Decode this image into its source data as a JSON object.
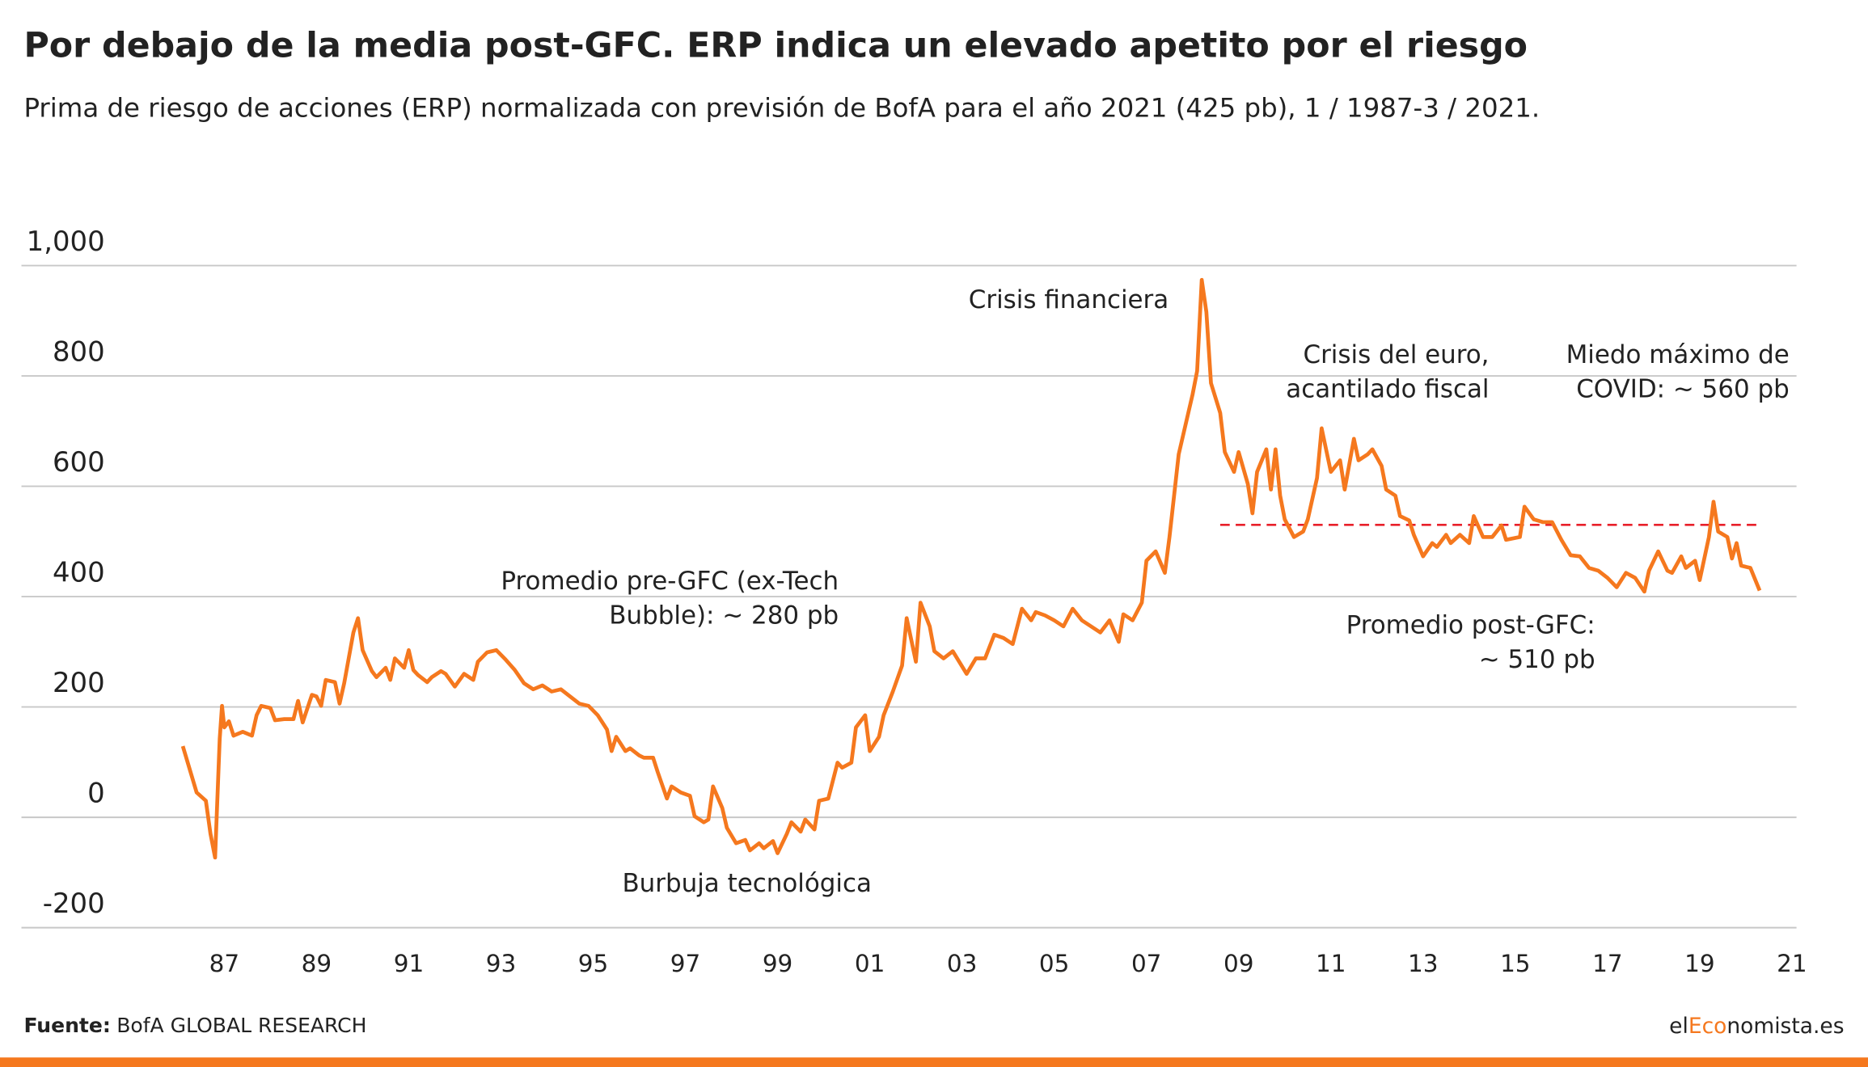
{
  "chart_data": {
    "type": "line",
    "title": "Por debajo de la media post-GFC. ERP indica un elevado apetito por el riesgo",
    "subtitle": "Prima de riesgo de acciones (ERP) normalizada con previsión de BofA para el año 2021 (425 pb), 1 / 1987-3 / 2021.",
    "color": "#f5781e",
    "x": [
      1986.1,
      1986.4,
      1986.6,
      1986.7,
      1986.8,
      1986.9,
      1986.95,
      1987.0,
      1987.1,
      1987.2,
      1987.4,
      1987.6,
      1987.7,
      1987.8,
      1988.0,
      1988.1,
      1988.3,
      1988.5,
      1988.6,
      1988.7,
      1988.9,
      1989.0,
      1989.1,
      1989.2,
      1989.4,
      1989.5,
      1989.6,
      1989.8,
      1989.9,
      1990.0,
      1990.2,
      1990.3,
      1990.5,
      1990.6,
      1990.7,
      1990.9,
      1991.0,
      1991.1,
      1991.2,
      1991.4,
      1991.5,
      1991.7,
      1991.8,
      1992.0,
      1992.2,
      1992.4,
      1992.5,
      1992.7,
      1992.9,
      1993.1,
      1993.3,
      1993.5,
      1993.7,
      1993.9,
      1994.1,
      1994.3,
      1994.5,
      1994.7,
      1994.9,
      1995.1,
      1995.3,
      1995.4,
      1995.5,
      1995.7,
      1995.8,
      1996.0,
      1996.1,
      1996.3,
      1996.4,
      1996.6,
      1996.7,
      1996.9,
      1997.1,
      1997.2,
      1997.4,
      1997.5,
      1997.6,
      1997.8,
      1997.9,
      1998.1,
      1998.3,
      1998.4,
      1998.6,
      1998.7,
      1998.9,
      1999.0,
      1999.2,
      1999.3,
      1999.5,
      1999.6,
      1999.8,
      1999.9,
      2000.1,
      2000.3,
      2000.4,
      2000.6,
      2000.7,
      2000.9,
      2001.0,
      2001.2,
      2001.3,
      2001.5,
      2001.7,
      2001.8,
      2002.0,
      2002.1,
      2002.3,
      2002.4,
      2002.6,
      2002.8,
      2003.1,
      2003.3,
      2003.5,
      2003.7,
      2003.9,
      2004.1,
      2004.3,
      2004.5,
      2004.6,
      2004.8,
      2005.0,
      2005.2,
      2005.4,
      2005.6,
      2005.8,
      2006.0,
      2006.2,
      2006.4,
      2006.5,
      2006.7,
      2006.9,
      2007.0,
      2007.2,
      2007.4,
      2007.5,
      2007.7,
      2008.0,
      2008.1,
      2008.2,
      2008.3,
      2008.4,
      2008.6,
      2008.7,
      2008.9,
      2009.0,
      2009.2,
      2009.3,
      2009.4,
      2009.6,
      2009.7,
      2009.8,
      2009.9,
      2010.0,
      2010.2,
      2010.4,
      2010.5,
      2010.7,
      2010.8,
      2011.0,
      2011.2,
      2011.3,
      2011.5,
      2011.6,
      2011.8,
      2011.9,
      2012.1,
      2012.2,
      2012.4,
      2012.5,
      2012.7,
      2012.8,
      2013.0,
      2013.2,
      2013.3,
      2013.5,
      2013.6,
      2013.8,
      2014.0,
      2014.1,
      2014.3,
      2014.5,
      2014.7,
      2014.8,
      2015.1,
      2015.2,
      2015.4,
      2015.6,
      2015.8,
      2016.0,
      2016.2,
      2016.4,
      2016.6,
      2016.8,
      2017.0,
      2017.2,
      2017.4,
      2017.6,
      2017.8,
      2017.9,
      2018.1,
      2018.3,
      2018.4,
      2018.6,
      2018.7,
      2018.9,
      2019.0,
      2019.2,
      2019.3,
      2019.4,
      2019.6,
      2019.7,
      2019.8,
      2019.9,
      2020.1,
      2020.3
    ],
    "values": [
      129,
      45,
      30,
      -30,
      -73,
      142,
      202,
      163,
      174,
      148,
      155,
      148,
      185,
      202,
      198,
      176,
      178,
      178,
      211,
      172,
      222,
      219,
      202,
      249,
      245,
      206,
      243,
      335,
      361,
      303,
      265,
      254,
      271,
      249,
      288,
      271,
      303,
      267,
      258,
      245,
      254,
      265,
      260,
      237,
      260,
      249,
      282,
      299,
      303,
      286,
      267,
      243,
      232,
      239,
      228,
      232,
      219,
      206,
      202,
      185,
      159,
      120,
      146,
      120,
      125,
      112,
      108,
      108,
      82,
      34,
      56,
      45,
      39,
      2,
      -9,
      -4,
      56,
      17,
      -19,
      -47,
      -41,
      -60,
      -47,
      -56,
      -43,
      -65,
      -30,
      -9,
      -26,
      -4,
      -22,
      30,
      34,
      99,
      90,
      99,
      163,
      185,
      120,
      146,
      185,
      228,
      275,
      361,
      282,
      389,
      346,
      301,
      288,
      301,
      260,
      288,
      288,
      331,
      325,
      314,
      378,
      357,
      372,
      366,
      357,
      346,
      378,
      357,
      346,
      335,
      357,
      318,
      368,
      357,
      389,
      465,
      482,
      443,
      508,
      658,
      766,
      809,
      974,
      916,
      787,
      733,
      662,
      626,
      662,
      604,
      551,
      626,
      667,
      594,
      667,
      583,
      540,
      508,
      518,
      540,
      615,
      705,
      626,
      647,
      594,
      686,
      647,
      658,
      667,
      637,
      594,
      583,
      546,
      538,
      512,
      473,
      497,
      490,
      512,
      497,
      512,
      497,
      546,
      508,
      508,
      529,
      503,
      508,
      563,
      540,
      535,
      535,
      503,
      475,
      473,
      452,
      447,
      434,
      417,
      443,
      434,
      409,
      447,
      482,
      447,
      443,
      473,
      452,
      465,
      430,
      508,
      572,
      518,
      508,
      469,
      497,
      456,
      452,
      411
    ],
    "reference_line": {
      "value": 530,
      "xmin": 2008.6,
      "xmax": 2020.3,
      "color": "#e8202a"
    },
    "xlim": [
      1982.6,
      2021.1
    ],
    "xticks": [
      {
        "value": 1987,
        "label": "87"
      },
      {
        "value": 1989,
        "label": "89"
      },
      {
        "value": 1991,
        "label": "91"
      },
      {
        "value": 1993,
        "label": "93"
      },
      {
        "value": 1995,
        "label": "95"
      },
      {
        "value": 1997,
        "label": "97"
      },
      {
        "value": 1999,
        "label": "99"
      },
      {
        "value": 2001,
        "label": "01"
      },
      {
        "value": 2003,
        "label": "03"
      },
      {
        "value": 2005,
        "label": "05"
      },
      {
        "value": 2007,
        "label": "07"
      },
      {
        "value": 2009,
        "label": "09"
      },
      {
        "value": 2011,
        "label": "11"
      },
      {
        "value": 2013,
        "label": "13"
      },
      {
        "value": 2015,
        "label": "15"
      },
      {
        "value": 2017,
        "label": "17"
      },
      {
        "value": 2019,
        "label": "19"
      },
      {
        "value": 2021,
        "label": "21"
      }
    ],
    "ylim": [
      -200,
      1000
    ],
    "yticks": [
      -200,
      0,
      200,
      400,
      600,
      800,
      {
        "value": 1000,
        "label": "1,000"
      }
    ],
    "grid": true,
    "annotations": [
      {
        "lines": [
          "Crisis financiera"
        ]
      },
      {
        "lines": [
          "Crisis del euro,",
          "acantilado fiscal"
        ]
      },
      {
        "lines": [
          "Miedo máximo de",
          "COVID: ~ 560 pb"
        ]
      },
      {
        "lines": [
          "Promedio pre-GFC (ex-Tech",
          "Bubble): ~ 280 pb"
        ]
      },
      {
        "lines": [
          "Promedio post-GFC:",
          "~ 510 pb"
        ]
      },
      {
        "lines": [
          "Burbuja tecnológica"
        ]
      }
    ]
  },
  "footer": {
    "source_label": "Fuente:",
    "source": "BofA GLOBAL RESEARCH",
    "logo": [
      "el",
      "Eco",
      "nomista.es"
    ]
  }
}
